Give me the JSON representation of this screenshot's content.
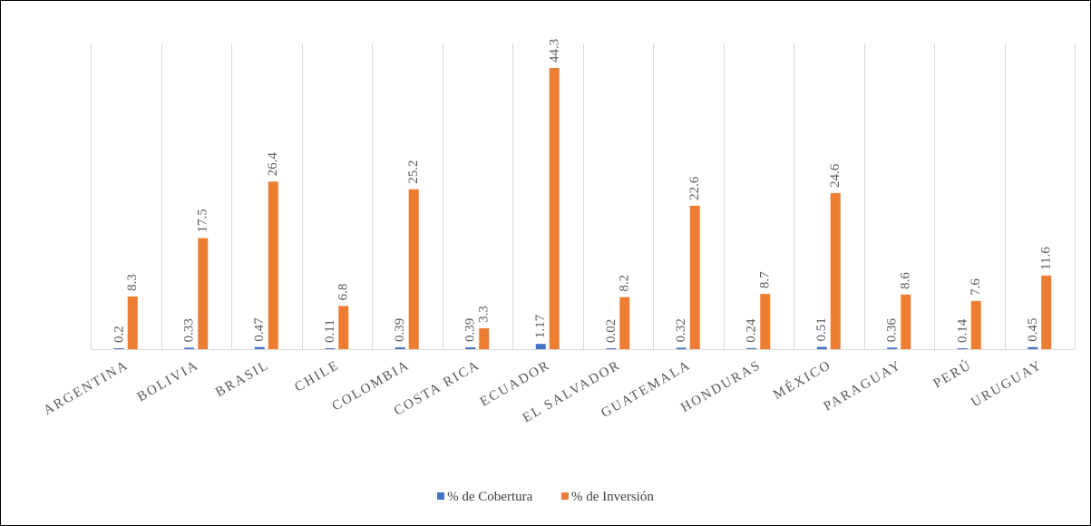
{
  "chart_data": {
    "type": "bar",
    "categories": [
      "ARGENTINA",
      "BOLIVIA",
      "BRASIL",
      "CHILE",
      "COLOMBIA",
      "COSTA RICA",
      "ECUADOR",
      "EL SALVADOR",
      "GUATEMALA",
      "HONDURAS",
      "MÉXICO",
      "PARAGUAY",
      "PERÚ",
      "URUGUAY"
    ],
    "series": [
      {
        "name": "% de Cobertura",
        "color": "#4472C4",
        "values": [
          0.2,
          0.33,
          0.47,
          0.11,
          0.39,
          0.39,
          1.17,
          0.02,
          0.32,
          0.24,
          0.51,
          0.36,
          0.14,
          0.45
        ],
        "labels": [
          "0.2",
          "0.33",
          "0.47",
          "0.11",
          "0.39",
          "0.39",
          "1.17",
          "0.02",
          "0.32",
          "0.24",
          "0.51",
          "0.36",
          "0.14",
          "0.45"
        ]
      },
      {
        "name": "% de Inversión",
        "color": "#ED7D31",
        "values": [
          8.3,
          17.5,
          26.4,
          6.8,
          25.2,
          3.3,
          44.3,
          8.2,
          22.6,
          8.7,
          24.6,
          8.6,
          7.6,
          11.6
        ],
        "labels": [
          "8.3",
          "17.5",
          "26.4",
          "6.8",
          "25.2",
          "3.3",
          "44.3",
          "8.2",
          "22.6",
          "8.7",
          "24.6",
          "8.6",
          "7.6",
          "11.6"
        ]
      }
    ],
    "title": "",
    "xlabel": "",
    "ylabel": "",
    "ylim": [
      0,
      48
    ],
    "grid": "vertical category separators",
    "legend_position": "bottom"
  }
}
